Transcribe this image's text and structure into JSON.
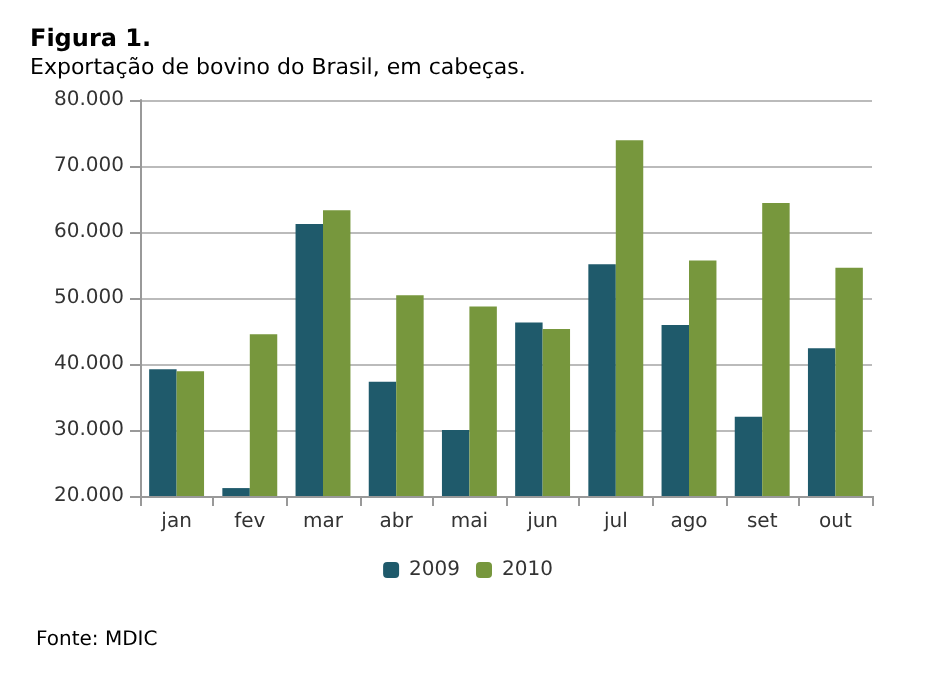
{
  "chart_data": {
    "type": "bar",
    "title": "Figura 1.",
    "subtitle": "Exportação de bovino do Brasil, em cabeças.",
    "categories": [
      "jan",
      "fev",
      "mar",
      "abr",
      "mai",
      "jun",
      "jul",
      "ago",
      "set",
      "out"
    ],
    "series": [
      {
        "name": "2009",
        "color": "#1f5a6b",
        "values": [
          39200,
          21200,
          61200,
          37300,
          30000,
          46300,
          55100,
          45900,
          32000,
          42400
        ]
      },
      {
        "name": "2010",
        "color": "#77973d",
        "values": [
          38900,
          44500,
          63300,
          50400,
          48700,
          45300,
          73900,
          55700,
          64400,
          54600
        ]
      }
    ],
    "ylim": [
      20000,
      80000
    ],
    "yticks": [
      {
        "value": 20000,
        "label": "20.000"
      },
      {
        "value": 30000,
        "label": "30.000"
      },
      {
        "value": 40000,
        "label": "40.000"
      },
      {
        "value": 50000,
        "label": "50.000"
      },
      {
        "value": 60000,
        "label": "60.000"
      },
      {
        "value": 70000,
        "label": "70.000"
      },
      {
        "value": 80000,
        "label": "80.000"
      }
    ],
    "grid": "y",
    "legend": "bottom",
    "annotations": [
      "Fonte: MDIC"
    ]
  }
}
